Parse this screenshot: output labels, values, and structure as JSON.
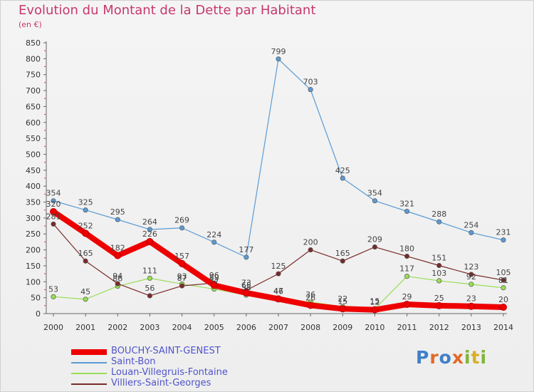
{
  "title": "Evolution du Montant de la Dette par Habitant",
  "subtitle": "(en €)",
  "logo_text": "Proxiti",
  "chart_data": {
    "type": "line",
    "title": "Evolution du Montant de la Dette par Habitant",
    "subtitle": "(en €)",
    "x": [
      "2000",
      "2001",
      "2002",
      "2003",
      "2004",
      "2005",
      "2006",
      "2007",
      "2008",
      "2009",
      "2010",
      "2011",
      "2012",
      "2013",
      "2014"
    ],
    "ylim": [
      0,
      850
    ],
    "yticks": [
      "0",
      "50",
      "100",
      "150",
      "200",
      "250",
      "300",
      "350",
      "400",
      "450",
      "500",
      "550",
      "600",
      "650",
      "700",
      "750",
      "800",
      "850"
    ],
    "grid": false,
    "legend_position": "bottom-left",
    "series": [
      {
        "name": "BOUCHY-SAINT-GENEST",
        "color": "#ee0000",
        "values": [
          320,
          252,
          182,
          226,
          157,
          89,
          65,
          46,
          26,
          15,
          12,
          29,
          25,
          23,
          20
        ],
        "labels": [
          "320",
          "252",
          "182",
          "226",
          "157",
          "89",
          "65",
          "46",
          "26",
          "15",
          "12",
          "29",
          "25",
          "23",
          "20"
        ]
      },
      {
        "name": "Saint-Bon",
        "color": "#5b9bd5",
        "values": [
          354,
          325,
          295,
          264,
          269,
          224,
          177,
          799,
          703,
          425,
          354,
          321,
          288,
          254,
          231
        ],
        "labels": [
          "354",
          "325",
          "295",
          "264",
          "269",
          "224",
          "177",
          "799",
          "703",
          "425",
          "354",
          "321",
          "288",
          "254",
          "231"
        ]
      },
      {
        "name": "Louan-Villegruis-Fontaine",
        "color": "#99dd55",
        "values": [
          53,
          45,
          86,
          111,
          93,
          77,
          58,
          47,
          36,
          22,
          15,
          117,
          103,
          92,
          81
        ],
        "labels": [
          "53",
          "45",
          "86",
          "111",
          "93",
          "77",
          "58",
          "47",
          "36",
          "22",
          "15",
          "117",
          "103",
          "92",
          "81"
        ]
      },
      {
        "name": "Villiers-Saint-Georges",
        "color": "#7a2a2a",
        "values": [
          281,
          165,
          94,
          56,
          87,
          96,
          73,
          125,
          200,
          165,
          209,
          180,
          151,
          123,
          105
        ],
        "labels": [
          "281",
          "165",
          "94",
          "56",
          "87",
          "96",
          "73",
          "125",
          "200",
          "165",
          "209",
          "180",
          "151",
          "123",
          "105"
        ]
      }
    ]
  }
}
